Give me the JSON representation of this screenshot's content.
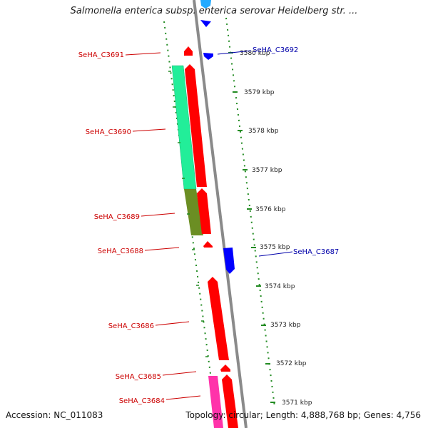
{
  "title": "Salmonella enterica subsp. enterica serovar Heidelberg str. ...",
  "footer": {
    "accession": "Accession: NC_011083",
    "topology": "Topology: circular; Length: 4,888,768 bp; Genes: 4,756"
  },
  "colors": {
    "forward_gene": "#ff0000",
    "reverse_gene": "#0000ff",
    "backbone": "#8a8a8a",
    "ruler": "#228b22",
    "left_label": "#cc0000",
    "right_label": "#0000aa"
  },
  "ticks": [
    "3580 kbp",
    "3579 kbp",
    "3578 kbp",
    "3577 kbp",
    "3576 kbp",
    "3575 kbp",
    "3574 kbp",
    "3573 kbp",
    "3572 kbp",
    "3571 kbp"
  ],
  "genes": [
    {
      "id": "SeHA_C3691",
      "strand": "forward",
      "side": "left"
    },
    {
      "id": "SeHA_C3690",
      "strand": "forward",
      "side": "left",
      "feature_color": "#22ee99"
    },
    {
      "id": "SeHA_C3689",
      "strand": "forward",
      "side": "left",
      "feature_color": "#6b8e23"
    },
    {
      "id": "SeHA_C3688",
      "strand": "forward",
      "side": "left"
    },
    {
      "id": "SeHA_C3686",
      "strand": "forward",
      "side": "left"
    },
    {
      "id": "SeHA_C3685",
      "strand": "forward",
      "side": "left"
    },
    {
      "id": "SeHA_C3684",
      "strand": "forward",
      "side": "left",
      "feature_color": "#ff33aa"
    },
    {
      "id": "SeHA_C3692",
      "strand": "reverse",
      "side": "right"
    },
    {
      "id": "SeHA_C3687",
      "strand": "reverse",
      "side": "right"
    }
  ]
}
